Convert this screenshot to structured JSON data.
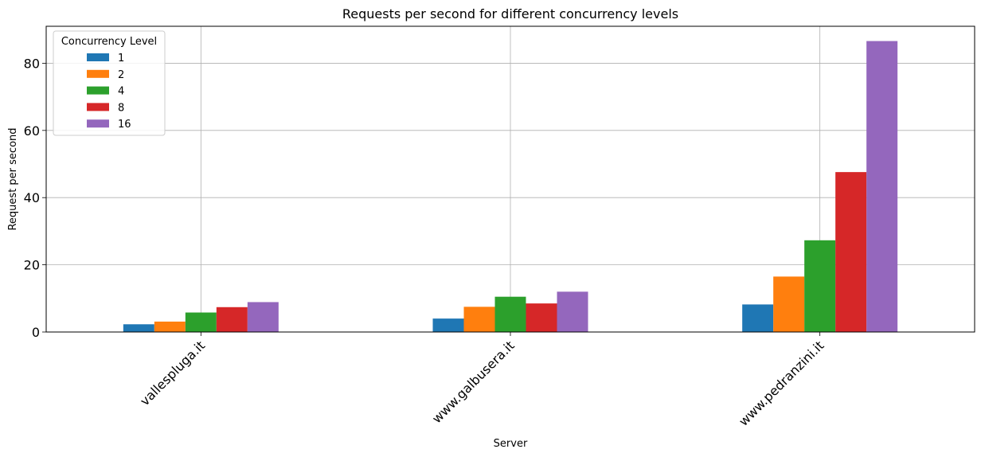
{
  "chart_data": {
    "type": "bar",
    "title": "Requests per second for different concurrency levels",
    "xlabel": "Server",
    "ylabel": "Request per second",
    "categories": [
      "vallespluga.it",
      "www.galbusera.it",
      "www.pedranzini.it"
    ],
    "series": [
      {
        "name": "1",
        "color": "#1f77b4",
        "values": [
          2.3,
          4.0,
          8.2
        ]
      },
      {
        "name": "2",
        "color": "#ff7f0e",
        "values": [
          3.1,
          7.5,
          16.5
        ]
      },
      {
        "name": "4",
        "color": "#2ca02c",
        "values": [
          5.8,
          10.5,
          27.3
        ]
      },
      {
        "name": "8",
        "color": "#d62728",
        "values": [
          7.4,
          8.5,
          47.6
        ]
      },
      {
        "name": "16",
        "color": "#9467bd",
        "values": [
          8.9,
          12.0,
          86.6
        ]
      }
    ],
    "ylim": [
      0,
      91
    ],
    "yticks": [
      0,
      20,
      40,
      60,
      80
    ],
    "grid": true,
    "legend": {
      "title": "Concurrency Level",
      "position": "top-left"
    }
  }
}
